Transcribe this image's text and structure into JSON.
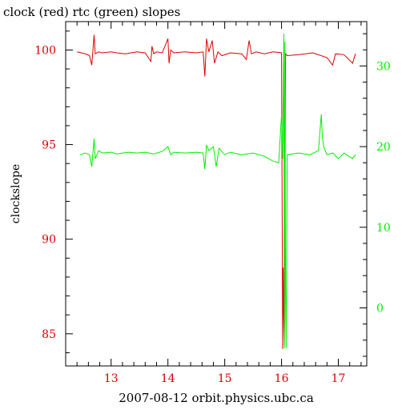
{
  "chart_data": {
    "type": "line",
    "title": "clock (red) rtc (green) slopes",
    "xlabel": "2007-08-12 orbit.physics.ubc.ca",
    "ylabel": "clockslope",
    "xlim": [
      12.2,
      17.5
    ],
    "ylim_left": [
      83.3,
      101.5
    ],
    "ylim_right": [
      -7.2,
      35.5
    ],
    "x_ticks": [
      13,
      14,
      15,
      16,
      17
    ],
    "y_left_ticks": [
      85,
      90,
      95,
      100
    ],
    "y_right_ticks": [
      0,
      10,
      20,
      30
    ],
    "grid": false,
    "colors": {
      "clock": "#dd0000",
      "rtc": "#00ee00",
      "axis": "#000000"
    },
    "series": [
      {
        "name": "clock",
        "axis": "left",
        "x": [
          12.4,
          12.55,
          12.62,
          12.66,
          12.7,
          12.72,
          12.78,
          12.85,
          13.0,
          13.1,
          13.25,
          13.45,
          13.6,
          13.7,
          13.72,
          13.75,
          13.8,
          13.9,
          14.0,
          14.02,
          14.05,
          14.1,
          14.3,
          14.5,
          14.62,
          14.65,
          14.68,
          14.72,
          14.78,
          14.82,
          14.88,
          14.95,
          15.1,
          15.3,
          15.38,
          15.43,
          15.47,
          15.55,
          15.7,
          15.85,
          16.0,
          16.02,
          16.03,
          16.04,
          16.05,
          16.07,
          16.1,
          16.3,
          16.55,
          16.8,
          16.9,
          16.95,
          17.1,
          17.25,
          17.3
        ],
        "values": [
          99.9,
          99.8,
          99.7,
          99.2,
          100.8,
          99.8,
          99.9,
          99.85,
          99.9,
          99.85,
          99.8,
          99.9,
          99.85,
          99.4,
          100.2,
          99.8,
          99.9,
          99.85,
          100.6,
          99.3,
          100.0,
          99.85,
          99.9,
          99.85,
          99.9,
          98.6,
          100.6,
          99.9,
          100.5,
          99.3,
          99.9,
          99.7,
          99.85,
          99.8,
          99.5,
          100.5,
          99.8,
          99.9,
          99.8,
          99.9,
          99.85,
          84.2,
          88.5,
          85.8,
          84.4,
          99.8,
          99.7,
          99.75,
          99.85,
          99.6,
          99.2,
          99.8,
          99.75,
          99.3,
          99.8
        ]
      },
      {
        "name": "rtc",
        "axis": "right",
        "x": [
          12.45,
          12.55,
          12.62,
          12.66,
          12.7,
          12.72,
          12.78,
          12.85,
          13.0,
          13.1,
          13.3,
          13.45,
          13.6,
          13.75,
          13.9,
          14.0,
          14.05,
          14.1,
          14.3,
          14.5,
          14.62,
          14.65,
          14.68,
          14.72,
          14.8,
          14.85,
          14.9,
          15.0,
          15.1,
          15.3,
          15.5,
          15.7,
          15.85,
          15.95,
          16.0,
          16.02,
          16.04,
          16.05,
          16.06,
          16.07,
          16.08,
          16.1,
          16.3,
          16.5,
          16.65,
          16.7,
          16.72,
          16.75,
          16.8,
          16.9,
          17.0,
          17.1,
          17.25,
          17.3
        ],
        "values": [
          19.0,
          19.2,
          19.0,
          17.5,
          21.0,
          18.5,
          19.5,
          19.2,
          19.3,
          19.1,
          19.3,
          19.2,
          19.3,
          19.1,
          19.4,
          20.0,
          19.0,
          19.3,
          19.2,
          19.3,
          19.2,
          17.2,
          20.2,
          19.5,
          20.0,
          17.5,
          19.8,
          19.0,
          19.3,
          19.0,
          19.2,
          18.8,
          18.2,
          18.0,
          24.0,
          18.5,
          34.0,
          -5.0,
          33.0,
          2.0,
          -5.0,
          19.0,
          19.2,
          19.0,
          19.5,
          24.0,
          21.0,
          19.8,
          19.0,
          19.2,
          18.5,
          19.2,
          18.5,
          19.0
        ]
      }
    ]
  }
}
